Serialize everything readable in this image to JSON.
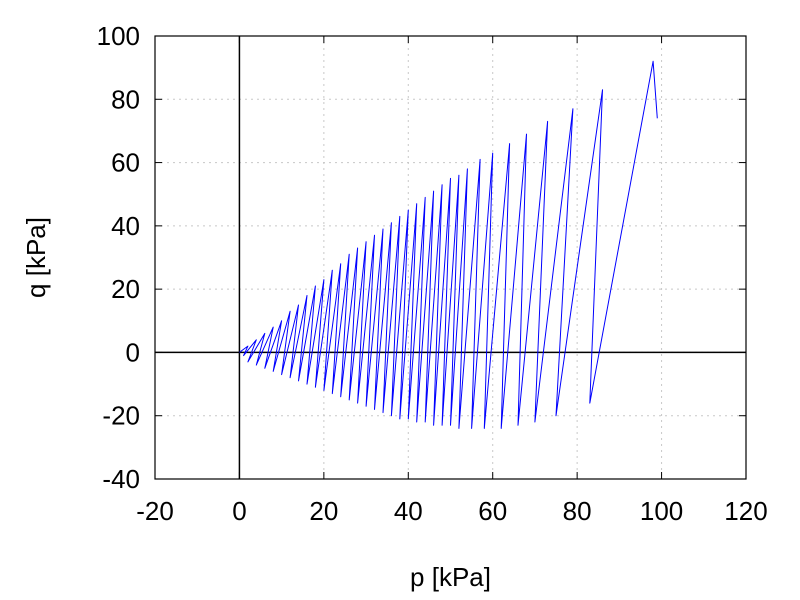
{
  "chart_data": {
    "type": "line",
    "title": "",
    "xlabel": "p [kPa]",
    "ylabel": "q [kPa]",
    "xlim": [
      -20,
      120
    ],
    "ylim": [
      -40,
      100
    ],
    "xticks": [
      -20,
      0,
      20,
      40,
      60,
      80,
      100,
      120
    ],
    "yticks": [
      -40,
      -20,
      0,
      20,
      40,
      60,
      80,
      100
    ],
    "xtick_labels": [
      "-20",
      "0",
      "20",
      "40",
      "60",
      "80",
      "100",
      "120"
    ],
    "ytick_labels": [
      "-40",
      "-20",
      "0",
      "20",
      "40",
      "60",
      "80",
      "100"
    ],
    "grid": true,
    "zero_lines": true,
    "series": [
      {
        "color": "#0000ff",
        "peaks": [
          [
            98,
            92
          ],
          [
            86,
            83
          ],
          [
            79,
            77
          ],
          [
            73,
            73
          ],
          [
            68,
            69
          ],
          [
            64,
            66
          ],
          [
            60,
            63
          ],
          [
            57,
            61
          ],
          [
            54,
            58
          ],
          [
            52,
            56
          ],
          [
            50,
            55
          ],
          [
            48,
            53
          ],
          [
            46,
            51
          ],
          [
            44,
            49
          ],
          [
            42,
            47
          ],
          [
            40,
            45
          ],
          [
            38,
            43
          ],
          [
            36,
            41
          ],
          [
            34,
            39
          ],
          [
            32,
            37
          ],
          [
            30,
            35
          ],
          [
            28,
            33
          ],
          [
            26,
            31
          ],
          [
            24,
            28
          ],
          [
            22,
            26
          ],
          [
            20,
            23
          ],
          [
            18,
            21
          ],
          [
            16,
            18
          ],
          [
            14,
            15
          ],
          [
            12,
            13
          ],
          [
            10,
            10
          ],
          [
            8,
            8
          ],
          [
            6,
            6
          ],
          [
            4,
            4
          ],
          [
            2,
            2
          ]
        ],
        "troughs": [
          [
            83,
            -16
          ],
          [
            75,
            -20
          ],
          [
            70,
            -22
          ],
          [
            66,
            -23
          ],
          [
            62,
            -24
          ],
          [
            58,
            -24
          ],
          [
            55,
            -24
          ],
          [
            52,
            -24
          ],
          [
            50,
            -23
          ],
          [
            48,
            -23
          ],
          [
            46,
            -23
          ],
          [
            44,
            -22
          ],
          [
            42,
            -22
          ],
          [
            40,
            -21
          ],
          [
            38,
            -21
          ],
          [
            36,
            -20
          ],
          [
            34,
            -19
          ],
          [
            32,
            -18
          ],
          [
            30,
            -17
          ],
          [
            28,
            -16
          ],
          [
            26,
            -15
          ],
          [
            24,
            -14
          ],
          [
            22,
            -13
          ],
          [
            20,
            -12
          ],
          [
            18,
            -11
          ],
          [
            16,
            -10
          ],
          [
            14,
            -9
          ],
          [
            12,
            -8
          ],
          [
            10,
            -7
          ],
          [
            8,
            -6
          ],
          [
            6,
            -5
          ],
          [
            4,
            -4
          ],
          [
            2,
            -3
          ],
          [
            1,
            -1
          ]
        ],
        "start": [
          99,
          74
        ],
        "end": [
          0,
          0
        ]
      }
    ]
  }
}
